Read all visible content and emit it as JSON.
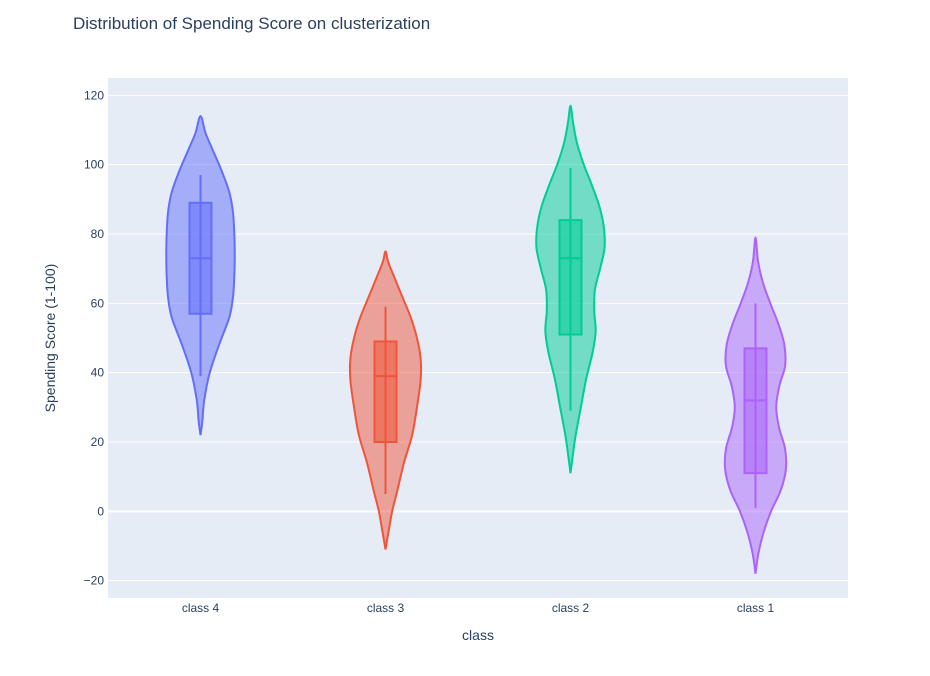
{
  "chart_data": {
    "type": "violin",
    "title": "Distribution of Spending Score on clusterization",
    "xlabel": "class",
    "ylabel": "Spending Score (1-100)",
    "categories": [
      "class 4",
      "class 3",
      "class 2",
      "class 1"
    ],
    "ylim": [
      -25,
      125
    ],
    "yticks": [
      -20,
      0,
      20,
      40,
      60,
      80,
      100,
      120
    ],
    "grid": true,
    "legend": false,
    "plot_background": "#e5ecf6",
    "series": [
      {
        "category": "class 4",
        "color": "#636efa",
        "box": {
          "lower_whisker": 39,
          "q1": 57,
          "median": 73,
          "q3": 89,
          "upper_whisker": 97
        },
        "density": {
          "y": [
            22,
            26,
            32,
            40,
            48,
            56,
            62,
            70,
            78,
            86,
            92,
            98,
            104,
            109,
            114
          ],
          "width": [
            0.0,
            0.05,
            0.1,
            0.25,
            0.5,
            0.78,
            0.88,
            0.92,
            0.92,
            0.88,
            0.78,
            0.58,
            0.34,
            0.14,
            0.0
          ]
        }
      },
      {
        "category": "class 3",
        "color": "#ef553b",
        "box": {
          "lower_whisker": 5,
          "q1": 20,
          "median": 39,
          "q3": 49,
          "upper_whisker": 59
        },
        "density": {
          "y": [
            -11,
            -6,
            0,
            6,
            14,
            22,
            30,
            38,
            44,
            50,
            56,
            62,
            68,
            72,
            75
          ],
          "width": [
            0.0,
            0.08,
            0.18,
            0.32,
            0.5,
            0.72,
            0.85,
            0.95,
            0.95,
            0.85,
            0.68,
            0.45,
            0.22,
            0.07,
            0.0
          ]
        }
      },
      {
        "category": "class 2",
        "color": "#00cc96",
        "box": {
          "lower_whisker": 29,
          "q1": 51,
          "median": 73,
          "q3": 84,
          "upper_whisker": 99
        },
        "density": {
          "y": [
            11,
            16,
            22,
            30,
            38,
            46,
            52,
            58,
            64,
            70,
            76,
            82,
            88,
            94,
            100,
            106,
            112,
            117
          ],
          "width": [
            0.0,
            0.06,
            0.14,
            0.28,
            0.42,
            0.6,
            0.68,
            0.64,
            0.66,
            0.8,
            0.92,
            0.9,
            0.78,
            0.58,
            0.36,
            0.18,
            0.07,
            0.0
          ]
        }
      },
      {
        "category": "class 1",
        "color": "#ab63fa",
        "box": {
          "lower_whisker": 1,
          "q1": 11,
          "median": 32,
          "q3": 47,
          "upper_whisker": 60
        },
        "density": {
          "y": [
            -18,
            -12,
            -6,
            0,
            6,
            12,
            18,
            24,
            30,
            36,
            42,
            48,
            54,
            60,
            66,
            72,
            79
          ],
          "width": [
            0.0,
            0.08,
            0.22,
            0.42,
            0.68,
            0.82,
            0.8,
            0.64,
            0.56,
            0.64,
            0.8,
            0.78,
            0.62,
            0.4,
            0.2,
            0.07,
            0.0
          ]
        }
      }
    ]
  }
}
